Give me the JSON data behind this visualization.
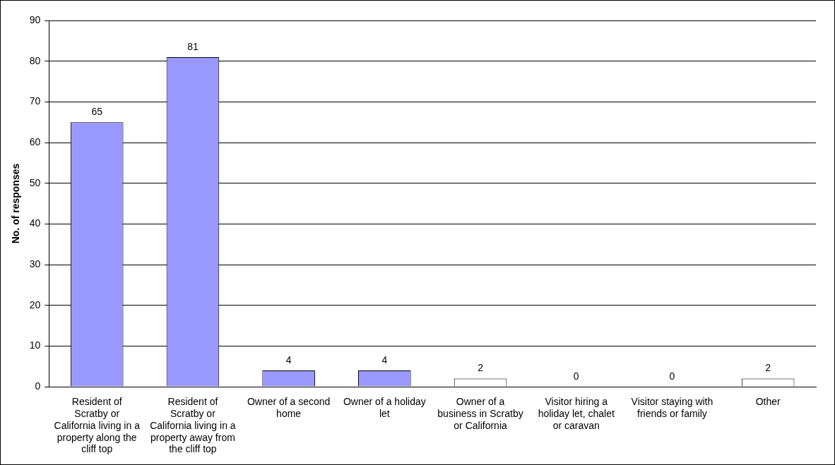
{
  "chart_data": {
    "type": "bar",
    "ylabel": "No. of responses",
    "categories": [
      "Resident of Scratby or California living in a property along the cliff top",
      "Resident of Scratby or California living in a property away from the cliff top",
      "Owner of a second home",
      "Owner of a holiday let",
      "Owner of a business in Scratby or California",
      "Visitor hiring a holiday let, chalet or caravan",
      "Visitor staying with friends or family",
      "Other"
    ],
    "values": [
      65,
      81,
      4,
      4,
      2,
      0,
      0,
      2
    ],
    "colors": [
      "#9999ff",
      "#9999ff",
      "#9999ff",
      "#9999ff",
      "#ffffff",
      "#ffffff",
      "#ffffff",
      "#ffffff"
    ],
    "ylim": [
      0,
      90
    ],
    "yticks": [
      0,
      10,
      20,
      30,
      40,
      50,
      60,
      70,
      80,
      90
    ],
    "grid": "y",
    "data_labels": true
  }
}
